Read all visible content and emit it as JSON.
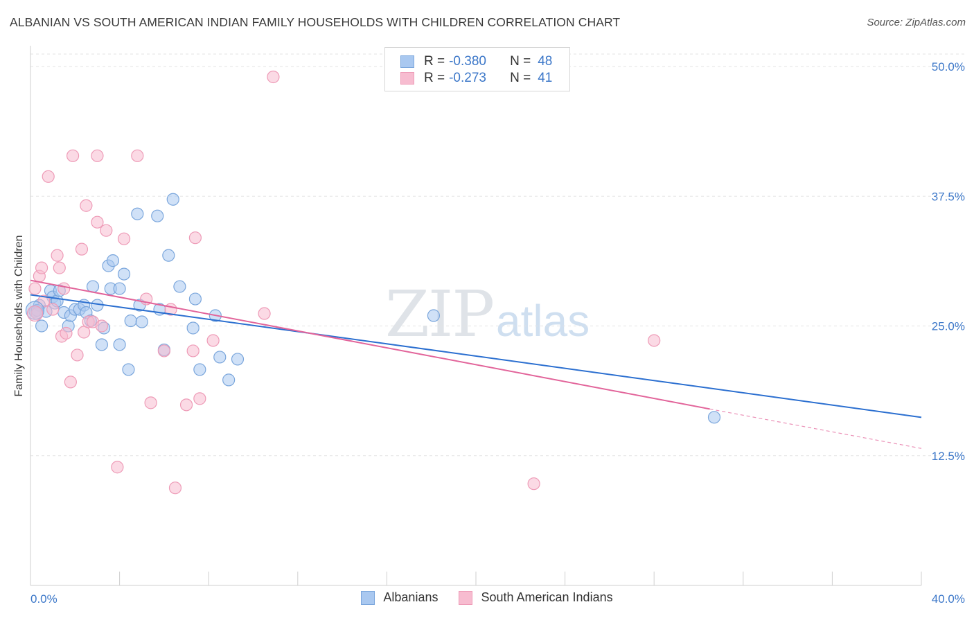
{
  "title": "ALBANIAN VS SOUTH AMERICAN INDIAN FAMILY HOUSEHOLDS WITH CHILDREN CORRELATION CHART",
  "source": "Source: ZipAtlas.com",
  "watermark": {
    "zip": "ZIP",
    "atlas": "atlas"
  },
  "legend_top": {
    "rows": [
      {
        "r_label": "R =",
        "r_value": "-0.380",
        "n_label": "N =",
        "n_value": "48"
      },
      {
        "r_label": "R =",
        "r_value": "-0.273",
        "n_label": "N =",
        "n_value": "41"
      }
    ]
  },
  "legend_bottom": [
    "Albanians",
    "South American Indians"
  ],
  "colors": {
    "albanian_fill": "#a9c8f0",
    "albanian_stroke": "#7aa6dc",
    "albanian_line": "#2b6fd0",
    "sai_fill": "#f7bcd0",
    "sai_stroke": "#ee9bb7",
    "sai_line": "#e2649a",
    "tick": "#3d78c9",
    "grid": "#e3e3e3"
  },
  "chart_data": {
    "type": "scatter",
    "title": "ALBANIAN VS SOUTH AMERICAN INDIAN FAMILY HOUSEHOLDS WITH CHILDREN CORRELATION CHART",
    "xlabel": "",
    "ylabel": "Family Households with Children",
    "xlim": [
      0,
      40
    ],
    "ylim": [
      0,
      50
    ],
    "x_tick_labels": [
      "0.0%",
      "40.0%"
    ],
    "y_ticks": [
      12.5,
      25.0,
      37.5,
      50.0
    ],
    "y_tick_labels": [
      "12.5%",
      "25.0%",
      "37.5%",
      "50.0%"
    ],
    "grid": "horizontal dashed",
    "legend_placement": "bottom",
    "series": [
      {
        "name": "Albanians",
        "R": -0.38,
        "N": 48,
        "trend": {
          "x": [
            0,
            40
          ],
          "y": [
            28.0,
            16.2
          ]
        },
        "points": [
          [
            0.2,
            26.4
          ],
          [
            0.4,
            27.0
          ],
          [
            0.5,
            25.0
          ],
          [
            0.7,
            26.4
          ],
          [
            0.9,
            28.4
          ],
          [
            1.0,
            27.8
          ],
          [
            1.1,
            27.2
          ],
          [
            1.2,
            27.4
          ],
          [
            1.3,
            28.4
          ],
          [
            1.5,
            26.3
          ],
          [
            1.7,
            25.0
          ],
          [
            1.8,
            26.0
          ],
          [
            2.0,
            26.6
          ],
          [
            2.2,
            26.6
          ],
          [
            2.4,
            27.0
          ],
          [
            2.5,
            26.3
          ],
          [
            2.7,
            25.5
          ],
          [
            2.8,
            28.8
          ],
          [
            3.0,
            27.0
          ],
          [
            3.2,
            23.2
          ],
          [
            3.3,
            24.8
          ],
          [
            3.5,
            30.8
          ],
          [
            3.6,
            28.6
          ],
          [
            3.7,
            31.3
          ],
          [
            4.0,
            28.6
          ],
          [
            4.0,
            23.2
          ],
          [
            4.2,
            30.0
          ],
          [
            4.4,
            20.8
          ],
          [
            4.5,
            25.5
          ],
          [
            4.8,
            35.8
          ],
          [
            4.9,
            27.0
          ],
          [
            5.0,
            25.4
          ],
          [
            5.7,
            35.6
          ],
          [
            5.8,
            26.6
          ],
          [
            6.0,
            22.7
          ],
          [
            6.2,
            31.8
          ],
          [
            6.4,
            37.2
          ],
          [
            6.7,
            28.8
          ],
          [
            7.3,
            24.8
          ],
          [
            7.4,
            27.6
          ],
          [
            7.6,
            20.8
          ],
          [
            8.3,
            26.0
          ],
          [
            8.5,
            22.0
          ],
          [
            8.9,
            19.8
          ],
          [
            9.3,
            21.8
          ],
          [
            18.1,
            26.0
          ],
          [
            30.7,
            16.2
          ],
          [
            0.3,
            26.5
          ]
        ]
      },
      {
        "name": "South American Indians",
        "R": -0.273,
        "N": 41,
        "trend": {
          "x": [
            0,
            30.5
          ],
          "y": [
            29.4,
            17.0
          ]
        },
        "trend_dashed": {
          "x": [
            30.5,
            40
          ],
          "y": [
            17.0,
            13.2
          ]
        },
        "points": [
          [
            0.2,
            28.6
          ],
          [
            0.4,
            29.8
          ],
          [
            0.5,
            30.6
          ],
          [
            0.6,
            27.4
          ],
          [
            0.8,
            39.4
          ],
          [
            1.0,
            26.6
          ],
          [
            1.2,
            31.8
          ],
          [
            1.3,
            30.6
          ],
          [
            1.4,
            24.0
          ],
          [
            1.5,
            28.6
          ],
          [
            1.6,
            24.3
          ],
          [
            1.8,
            19.6
          ],
          [
            1.9,
            41.4
          ],
          [
            2.1,
            22.2
          ],
          [
            2.3,
            32.4
          ],
          [
            2.4,
            24.4
          ],
          [
            2.5,
            36.6
          ],
          [
            2.6,
            25.4
          ],
          [
            2.8,
            25.4
          ],
          [
            3.0,
            41.4
          ],
          [
            3.0,
            35.0
          ],
          [
            3.2,
            25.0
          ],
          [
            3.4,
            34.2
          ],
          [
            3.9,
            11.4
          ],
          [
            4.2,
            33.4
          ],
          [
            4.8,
            41.4
          ],
          [
            5.2,
            27.6
          ],
          [
            5.4,
            17.6
          ],
          [
            6.0,
            22.6
          ],
          [
            6.3,
            26.6
          ],
          [
            6.5,
            9.4
          ],
          [
            7.0,
            17.4
          ],
          [
            7.3,
            22.6
          ],
          [
            7.4,
            33.5
          ],
          [
            7.6,
            18.0
          ],
          [
            8.2,
            23.6
          ],
          [
            10.5,
            26.2
          ],
          [
            10.9,
            49.0
          ],
          [
            22.6,
            9.8
          ],
          [
            28.0,
            23.6
          ],
          [
            0.3,
            26.2
          ]
        ]
      }
    ]
  }
}
